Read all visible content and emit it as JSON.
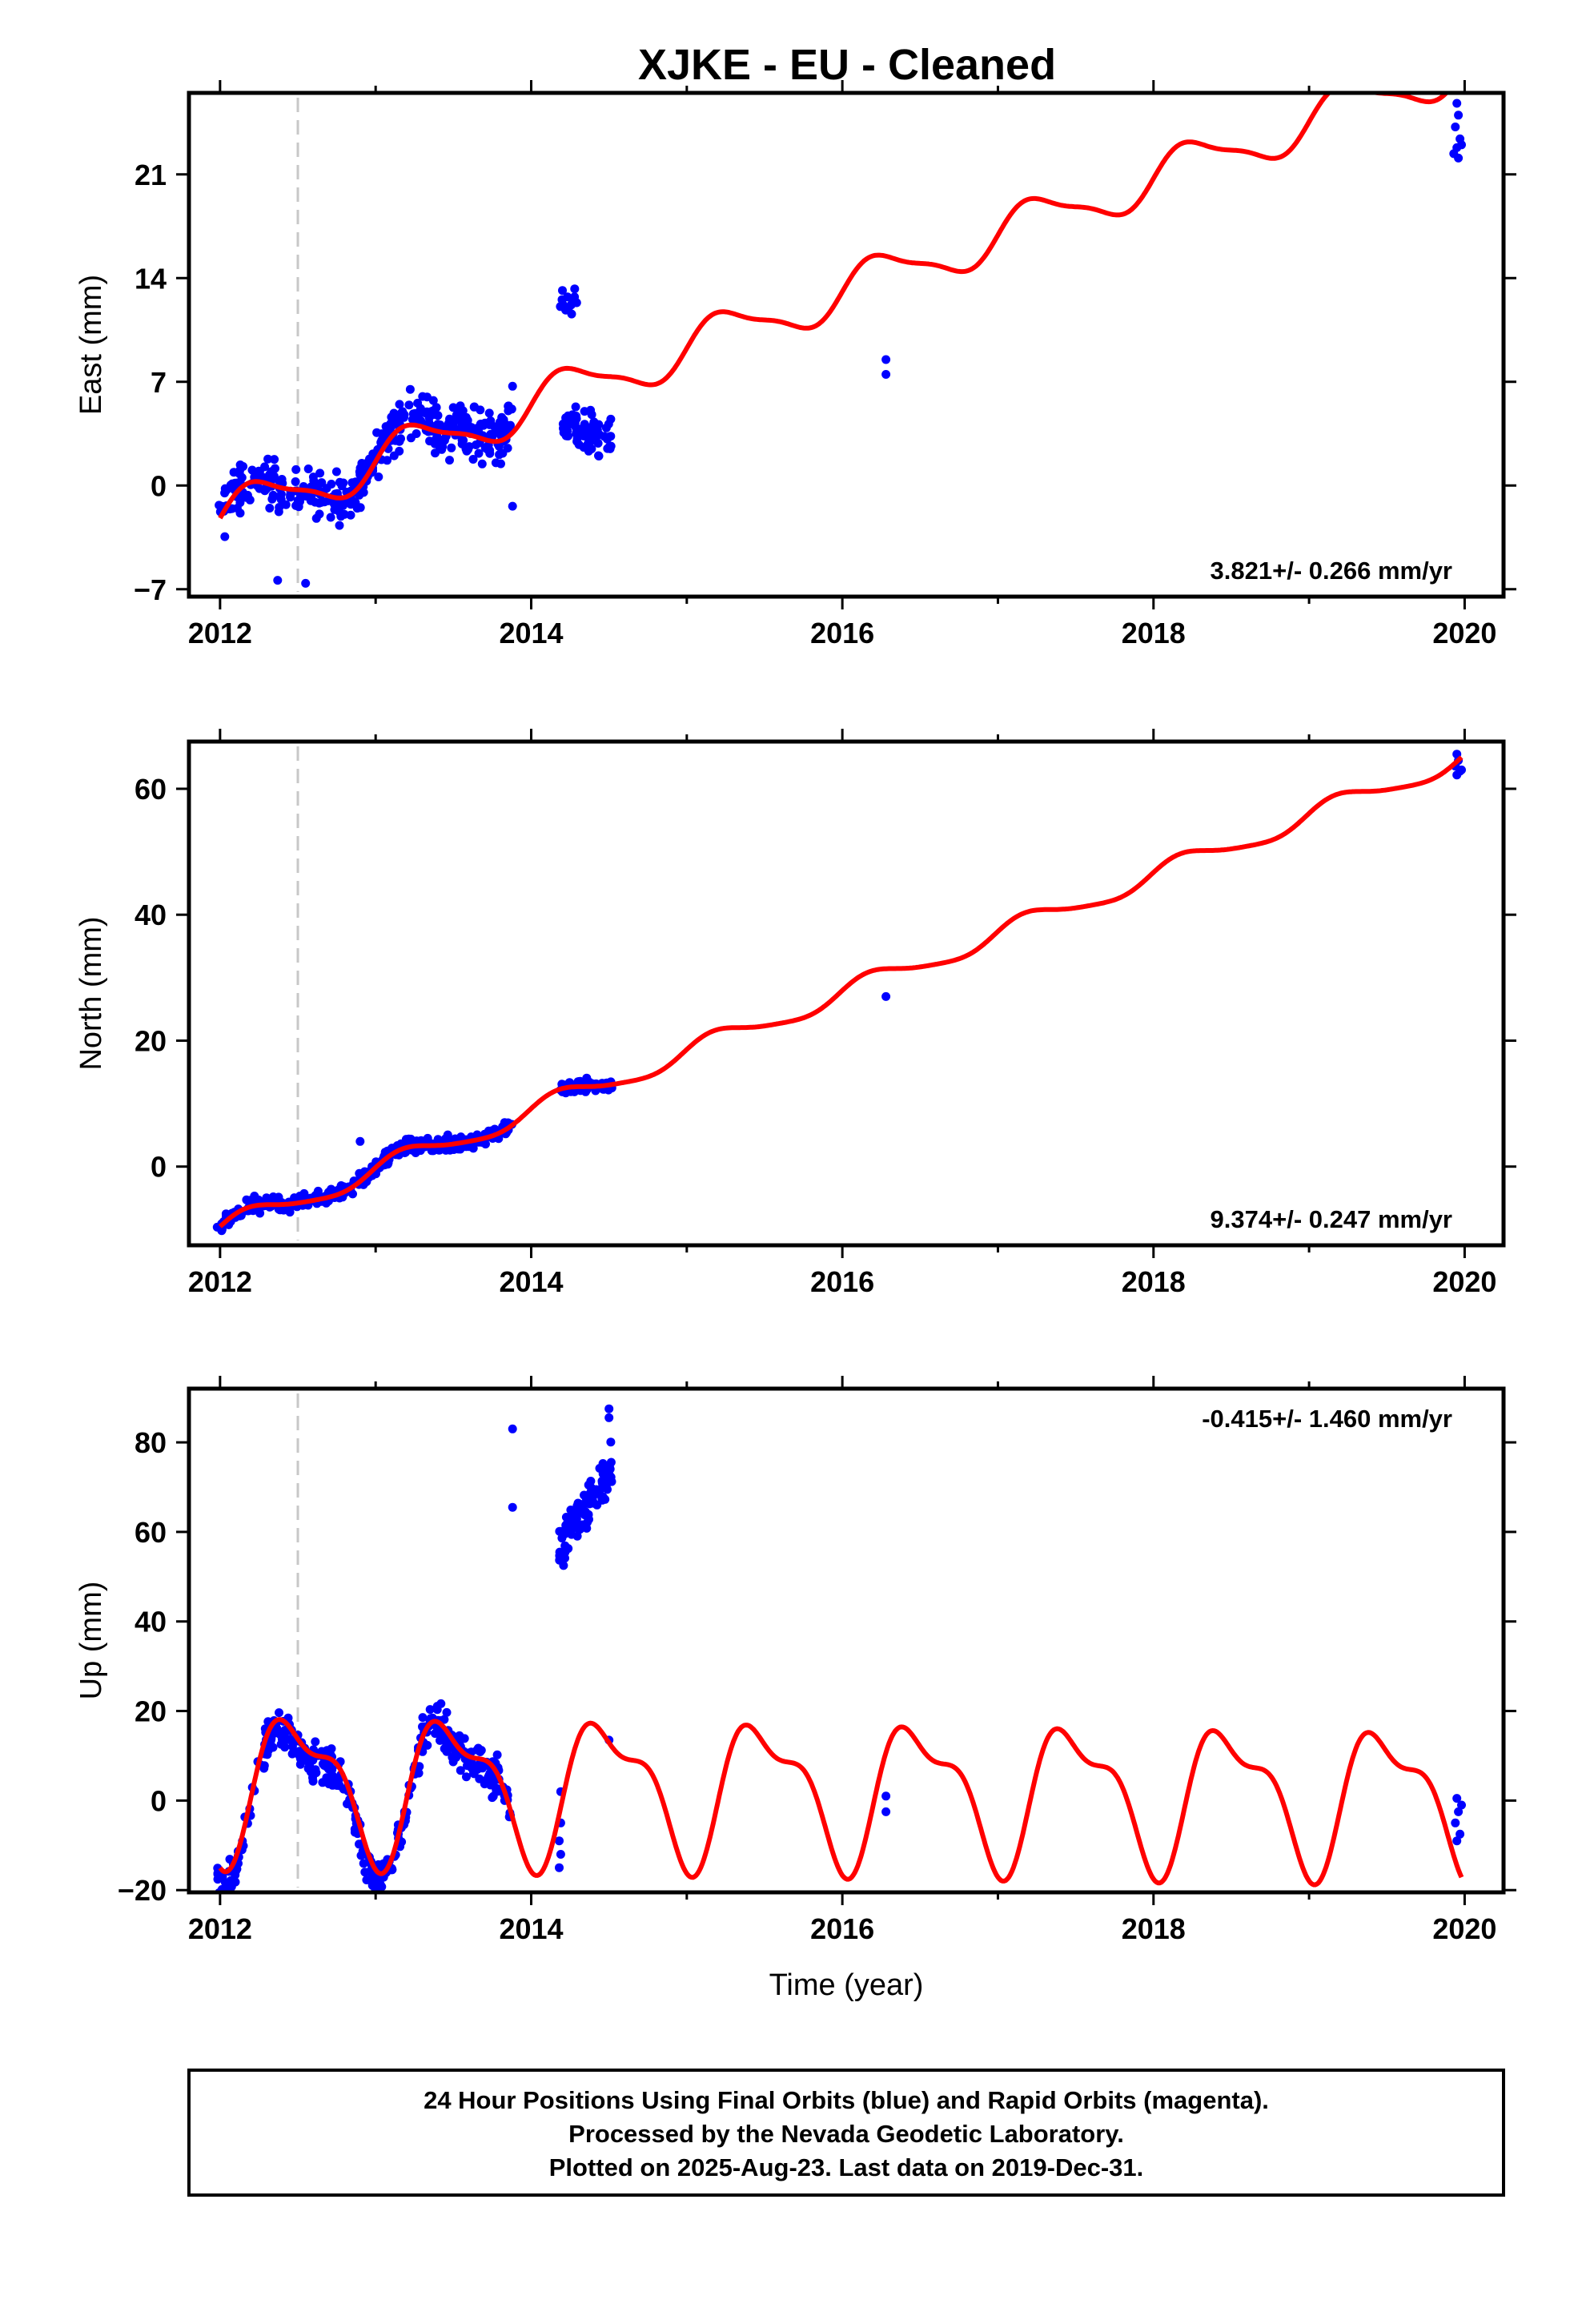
{
  "title": "XJKE  - EU - Cleaned",
  "footer": {
    "lines": [
      "24 Hour Positions Using Final Orbits (blue) and Rapid Orbits (magenta).",
      "Processed by the Nevada Geodetic Laboratory.",
      "Plotted on 2025-Aug-23. Last data on 2019-Dec-31."
    ]
  },
  "colors": {
    "data": "#0000ff",
    "model": "#ff0000",
    "event_line": "#c8c8c8",
    "frame": "#000000"
  },
  "chart_data": [
    {
      "type": "scatter",
      "component": "east",
      "ylabel": "East (mm)",
      "xlim": [
        2011.8,
        2020.25
      ],
      "ylim": [
        -7.5,
        26.5
      ],
      "x_ticks": [
        2012,
        2014,
        2016,
        2018,
        2020
      ],
      "y_ticks": [
        -7,
        0,
        7,
        14,
        21
      ],
      "y_tick_labels": [
        "−7",
        "0",
        "7",
        "14",
        "21"
      ],
      "grid": false,
      "event_line_x": 2012.5,
      "rate_text": "3.821+/- 0.266 mm/yr",
      "rate_position": "bottom-right",
      "model": {
        "base": -2.2,
        "rate": 3.821,
        "ref_year": 2012.0,
        "annual_amp": 1.5,
        "annual_phase": 0.0,
        "semiannual_amp": 0.4,
        "offset_at": 2012.5,
        "offset": 0.0
      },
      "segments": [
        {
          "start": 2011.98,
          "end": 2012.5,
          "count": 90,
          "spread": 2.4,
          "dy": 0.0
        },
        {
          "start": 2012.5,
          "end": 2013.0,
          "count": 110,
          "spread": 2.2,
          "dy": 0.0
        },
        {
          "start": 2013.0,
          "end": 2013.88,
          "count": 200,
          "spread": 2.6,
          "dy": 0.4
        },
        {
          "start": 2014.18,
          "end": 2014.3,
          "count": 14,
          "spread": 1.2,
          "dy": 4.5
        },
        {
          "start": 2014.2,
          "end": 2014.52,
          "count": 70,
          "spread": 2.0,
          "dy": -4.0
        }
      ],
      "points": [
        {
          "x": 2012.55,
          "y": -6.6
        },
        {
          "x": 2012.37,
          "y": -6.4
        },
        {
          "x": 2013.88,
          "y": 6.7
        },
        {
          "x": 2013.88,
          "y": -1.4
        },
        {
          "x": 2016.28,
          "y": 8.5
        },
        {
          "x": 2016.28,
          "y": 7.5
        },
        {
          "x": 2019.95,
          "y": 25.8
        },
        {
          "x": 2019.96,
          "y": 25.0
        },
        {
          "x": 2019.94,
          "y": 24.2
        },
        {
          "x": 2019.97,
          "y": 23.4
        },
        {
          "x": 2019.95,
          "y": 22.8
        },
        {
          "x": 2019.93,
          "y": 22.4
        },
        {
          "x": 2019.98,
          "y": 23.0
        },
        {
          "x": 2019.96,
          "y": 22.1
        }
      ]
    },
    {
      "type": "scatter",
      "component": "north",
      "ylabel": "North (mm)",
      "xlim": [
        2011.8,
        2020.25
      ],
      "ylim": [
        -12.5,
        67.5
      ],
      "x_ticks": [
        2012,
        2014,
        2016,
        2018,
        2020
      ],
      "y_ticks": [
        0,
        20,
        40,
        60
      ],
      "y_tick_labels": [
        "0",
        "20",
        "40",
        "60"
      ],
      "grid": false,
      "event_line_x": 2012.5,
      "rate_text": "9.374+/- 0.247 mm/yr",
      "rate_position": "bottom-right",
      "model": {
        "base": -10.0,
        "rate": 9.374,
        "ref_year": 2012.0,
        "annual_amp": 1.6,
        "annual_phase": 0.3,
        "semiannual_amp": 0.3,
        "offset_at": 2012.5,
        "offset": 0.0
      },
      "segments": [
        {
          "start": 2011.98,
          "end": 2012.5,
          "count": 90,
          "spread": 1.8,
          "dy": 0.0
        },
        {
          "start": 2012.5,
          "end": 2013.0,
          "count": 110,
          "spread": 1.8,
          "dy": 0.0
        },
        {
          "start": 2013.0,
          "end": 2013.88,
          "count": 200,
          "spread": 1.8,
          "dy": 0.0
        },
        {
          "start": 2014.18,
          "end": 2014.52,
          "count": 80,
          "spread": 1.6,
          "dy": 0.0
        }
      ],
      "points": [
        {
          "x": 2012.9,
          "y": 4.0
        },
        {
          "x": 2016.28,
          "y": 27.0
        },
        {
          "x": 2019.95,
          "y": 65.5
        },
        {
          "x": 2019.96,
          "y": 64.5
        },
        {
          "x": 2019.94,
          "y": 63.6
        },
        {
          "x": 2019.97,
          "y": 62.8
        },
        {
          "x": 2019.95,
          "y": 62.2
        },
        {
          "x": 2019.98,
          "y": 63.0
        }
      ]
    },
    {
      "type": "scatter",
      "component": "up",
      "ylabel": "Up (mm)",
      "xlabel": "Time (year)",
      "xlim": [
        2011.8,
        2020.25
      ],
      "ylim": [
        -20.5,
        92.0
      ],
      "x_ticks": [
        2012,
        2014,
        2016,
        2018,
        2020
      ],
      "y_ticks": [
        -20,
        0,
        20,
        40,
        60,
        80
      ],
      "y_tick_labels": [
        "−20",
        "0",
        "20",
        "40",
        "60",
        "80"
      ],
      "grid": false,
      "event_line_x": 2012.5,
      "rate_text": "-0.415+/- 1.460 mm/yr",
      "rate_position": "top-right",
      "model": {
        "base": 4.0,
        "rate": -0.415,
        "ref_year": 2012.0,
        "annual_amp": 14.5,
        "annual_phase": 4.72,
        "semiannual_amp": 6.0,
        "semiannual_phase": 4.0,
        "offset_at": 2012.5,
        "offset": 0.0
      },
      "segments": [
        {
          "start": 2011.98,
          "end": 2012.5,
          "count": 90,
          "spread": 6.0,
          "dy": -2.0
        },
        {
          "start": 2012.5,
          "end": 2013.0,
          "count": 110,
          "spread": 7.0,
          "dy": -2.0
        },
        {
          "start": 2013.0,
          "end": 2013.88,
          "count": 200,
          "spread": 7.0,
          "dy": -1.0
        },
        {
          "start": 2014.18,
          "end": 2014.52,
          "count": 100,
          "spread": 8.0,
          "dy": 0.0
        }
      ],
      "segment_override": {
        "index": 3,
        "trend": [
          57.0,
          74.0
        ]
      },
      "points": [
        {
          "x": 2013.88,
          "y": 83.0
        },
        {
          "x": 2013.88,
          "y": 65.5
        },
        {
          "x": 2014.5,
          "y": 87.5
        },
        {
          "x": 2014.5,
          "y": 85.5
        },
        {
          "x": 2014.5,
          "y": 13.5
        },
        {
          "x": 2014.18,
          "y": -15.0
        },
        {
          "x": 2014.19,
          "y": -12.0
        },
        {
          "x": 2014.18,
          "y": -9.0
        },
        {
          "x": 2014.19,
          "y": -5.0
        },
        {
          "x": 2014.19,
          "y": 2.0
        },
        {
          "x": 2016.28,
          "y": 1.0
        },
        {
          "x": 2016.28,
          "y": -2.5
        },
        {
          "x": 2019.95,
          "y": 0.5
        },
        {
          "x": 2019.96,
          "y": -2.5
        },
        {
          "x": 2019.94,
          "y": -5.0
        },
        {
          "x": 2019.97,
          "y": -7.5
        },
        {
          "x": 2019.95,
          "y": -9.0
        },
        {
          "x": 2019.98,
          "y": -1.0
        }
      ]
    }
  ]
}
